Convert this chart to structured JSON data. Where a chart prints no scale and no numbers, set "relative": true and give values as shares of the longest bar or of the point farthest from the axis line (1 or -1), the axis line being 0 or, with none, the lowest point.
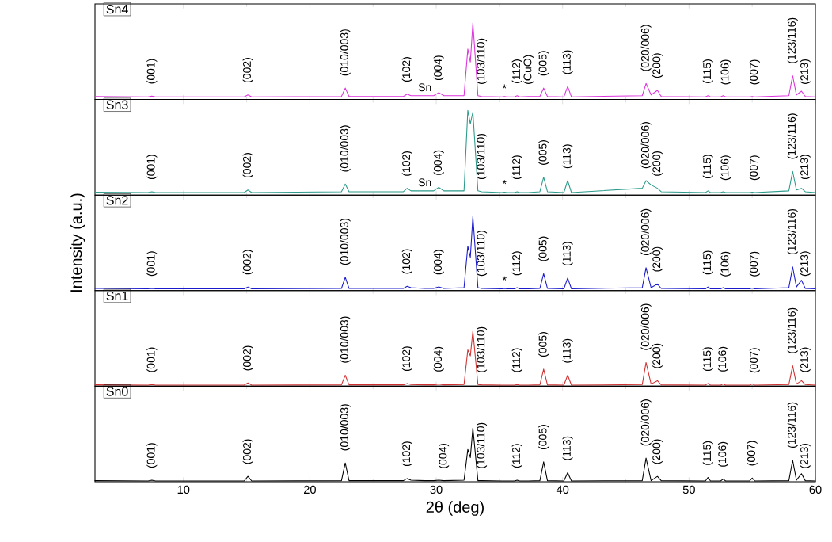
{
  "chart_data": [
    {
      "type": "line",
      "relative": true,
      "title": "Sn4",
      "color": "#dd33dd",
      "xlim": [
        3,
        60
      ],
      "xticks": [
        10,
        20,
        30,
        40,
        50,
        60
      ],
      "tick_labels": false,
      "x": [
        3,
        7.2,
        7.5,
        7.8,
        14.8,
        15.1,
        15.4,
        22.5,
        22.8,
        23.1,
        27.4,
        27.7,
        28.0,
        29.1,
        29.8,
        30.2,
        30.6,
        32.2,
        32.5,
        32.7,
        32.9,
        33.3,
        33.6,
        35.2,
        35.4,
        35.6,
        36.2,
        36.4,
        36.6,
        37.3,
        38.2,
        38.5,
        38.8,
        40.1,
        40.4,
        40.7,
        46.3,
        46.6,
        47.0,
        47.5,
        47.8,
        51.3,
        51.5,
        51.7,
        52.5,
        52.7,
        52.9,
        54.8,
        55.0,
        55.2,
        57.9,
        58.2,
        58.5,
        58.9,
        59.2,
        60
      ],
      "values": [
        0.04,
        0.035,
        0.045,
        0.035,
        0.035,
        0.06,
        0.035,
        0.04,
        0.15,
        0.04,
        0.04,
        0.07,
        0.05,
        0.05,
        0.05,
        0.09,
        0.05,
        0.05,
        0.66,
        0.49,
        1,
        0.05,
        0.04,
        0.035,
        0.04,
        0.035,
        0.035,
        0.05,
        0.035,
        0.04,
        0.04,
        0.15,
        0.04,
        0.035,
        0.17,
        0.035,
        0.05,
        0.21,
        0.06,
        0.12,
        0.04,
        0.035,
        0.05,
        0.035,
        0.035,
        0.05,
        0.035,
        0.035,
        0.04,
        0.035,
        0.05,
        0.31,
        0.06,
        0.11,
        0.04,
        0.035
      ],
      "annotations": [
        {
          "text": "(001)",
          "x": 7.5,
          "y": 0.045
        },
        {
          "text": "(002)",
          "x": 15.1,
          "y": 0.06
        },
        {
          "text": "(010/003)",
          "x": 22.8,
          "y": 0.15
        },
        {
          "text": "(102)",
          "x": 27.7,
          "y": 0.07
        },
        {
          "text": "Sn",
          "x": 29.1,
          "y": 0.05
        },
        {
          "text": "(004)",
          "x": 30.2,
          "y": 0.09
        },
        {
          "text": "(103/110)",
          "x": 33.6,
          "y": 0.04
        },
        {
          "text": "*",
          "x": 35.4,
          "y": 0.04
        },
        {
          "text": "(112)",
          "x": 36.4,
          "y": 0.05
        },
        {
          "text": "(CuO)",
          "x": 37.3,
          "y": 0.04
        },
        {
          "text": "(005)",
          "x": 38.5,
          "y": 0.15
        },
        {
          "text": "(113)",
          "x": 40.4,
          "y": 0.17
        },
        {
          "text": "(020/006)",
          "x": 46.6,
          "y": 0.21
        },
        {
          "text": "(200)",
          "x": 47.5,
          "y": 0.12
        },
        {
          "text": "(115)",
          "x": 51.5,
          "y": 0.05
        },
        {
          "text": "(106)",
          "x": 52.9,
          "y": 0.035
        },
        {
          "text": "(007)",
          "x": 55.2,
          "y": 0.035
        },
        {
          "text": "(123/116)",
          "x": 58.2,
          "y": 0.31
        },
        {
          "text": "(213)",
          "x": 59.2,
          "y": 0.04
        }
      ]
    },
    {
      "type": "line",
      "relative": true,
      "title": "Sn3",
      "color": "#2a9a8a",
      "xlim": [
        3,
        60
      ],
      "xticks": [
        10,
        20,
        30,
        40,
        50,
        60
      ],
      "tick_labels": false,
      "x": [
        3,
        7.2,
        7.5,
        7.8,
        14.8,
        15.1,
        15.4,
        22.5,
        22.8,
        23.1,
        27.4,
        27.7,
        28.0,
        29.1,
        29.8,
        30.2,
        30.6,
        32.2,
        32.5,
        32.7,
        32.9,
        33.3,
        33.6,
        35.2,
        35.4,
        35.6,
        36.2,
        36.4,
        36.6,
        37.3,
        38.2,
        38.5,
        38.8,
        40.1,
        40.4,
        40.7,
        46.3,
        46.6,
        47.0,
        47.5,
        47.8,
        51.3,
        51.5,
        51.7,
        52.5,
        52.7,
        52.9,
        54.8,
        55.0,
        55.2,
        57.9,
        58.2,
        58.5,
        58.9,
        59.2,
        60
      ],
      "values": [
        0.035,
        0.03,
        0.04,
        0.03,
        0.03,
        0.06,
        0.03,
        0.04,
        0.13,
        0.04,
        0.04,
        0.08,
        0.05,
        0.05,
        0.05,
        0.09,
        0.05,
        0.05,
        1,
        0.84,
        0.98,
        0.05,
        0.04,
        0.03,
        0.035,
        0.03,
        0.03,
        0.04,
        0.03,
        0.03,
        0.04,
        0.21,
        0.04,
        0.03,
        0.17,
        0.03,
        0.08,
        0.17,
        0.12,
        0.08,
        0.04,
        0.03,
        0.05,
        0.03,
        0.03,
        0.04,
        0.03,
        0.03,
        0.035,
        0.03,
        0.05,
        0.28,
        0.06,
        0.08,
        0.04,
        0.03
      ],
      "annotations": [
        {
          "text": "(001)",
          "x": 7.5,
          "y": 0.04
        },
        {
          "text": "(002)",
          "x": 15.1,
          "y": 0.06
        },
        {
          "text": "(010/003)",
          "x": 22.8,
          "y": 0.13
        },
        {
          "text": "(102)",
          "x": 27.7,
          "y": 0.08
        },
        {
          "text": "Sn",
          "x": 29.1,
          "y": 0.05
        },
        {
          "text": "(004)",
          "x": 30.2,
          "y": 0.09
        },
        {
          "text": "(103/110)",
          "x": 33.6,
          "y": 0.04
        },
        {
          "text": "*",
          "x": 35.4,
          "y": 0.035
        },
        {
          "text": "(112)",
          "x": 36.4,
          "y": 0.04
        },
        {
          "text": "(005)",
          "x": 38.5,
          "y": 0.21
        },
        {
          "text": "(113)",
          "x": 40.4,
          "y": 0.17
        },
        {
          "text": "(020/006)",
          "x": 46.6,
          "y": 0.17
        },
        {
          "text": "(200)",
          "x": 47.5,
          "y": 0.08
        },
        {
          "text": "(115)",
          "x": 51.5,
          "y": 0.05
        },
        {
          "text": "(106)",
          "x": 52.9,
          "y": 0.03
        },
        {
          "text": "(007)",
          "x": 55.2,
          "y": 0.03
        },
        {
          "text": "(123/116)",
          "x": 58.2,
          "y": 0.28
        },
        {
          "text": "(213)",
          "x": 59.2,
          "y": 0.04
        }
      ]
    },
    {
      "type": "line",
      "relative": true,
      "title": "Sn2",
      "ylabel": "Intensity (a.u.)",
      "color": "#1a1acc",
      "xlim": [
        3,
        60
      ],
      "xticks": [
        10,
        20,
        30,
        40,
        50,
        60
      ],
      "tick_labels": false,
      "x": [
        3,
        7.2,
        7.5,
        7.8,
        14.8,
        15.1,
        15.4,
        22.5,
        22.8,
        23.1,
        27.4,
        27.7,
        28.0,
        29.1,
        29.8,
        30.2,
        30.6,
        32.2,
        32.5,
        32.7,
        32.9,
        33.3,
        33.6,
        35.2,
        35.4,
        35.6,
        36.2,
        36.4,
        36.6,
        37.3,
        38.2,
        38.5,
        38.8,
        40.1,
        40.4,
        40.7,
        46.3,
        46.6,
        47.0,
        47.5,
        47.8,
        51.3,
        51.5,
        51.7,
        52.5,
        52.7,
        52.9,
        54.8,
        55.0,
        55.2,
        57.9,
        58.2,
        58.5,
        58.9,
        59.2,
        60
      ],
      "values": [
        0.03,
        0.025,
        0.03,
        0.025,
        0.025,
        0.05,
        0.025,
        0.03,
        0.18,
        0.03,
        0.03,
        0.06,
        0.04,
        0.03,
        0.03,
        0.05,
        0.03,
        0.04,
        0.6,
        0.45,
        1,
        0.04,
        0.03,
        0.025,
        0.03,
        0.025,
        0.025,
        0.04,
        0.025,
        0.025,
        0.03,
        0.23,
        0.03,
        0.025,
        0.17,
        0.025,
        0.04,
        0.31,
        0.04,
        0.09,
        0.03,
        0.025,
        0.05,
        0.025,
        0.025,
        0.04,
        0.025,
        0.025,
        0.035,
        0.025,
        0.04,
        0.32,
        0.05,
        0.14,
        0.03,
        0.025
      ],
      "annotations": [
        {
          "text": "(001)",
          "x": 7.5,
          "y": 0.03
        },
        {
          "text": "(002)",
          "x": 15.1,
          "y": 0.05
        },
        {
          "text": "(010/003)",
          "x": 22.8,
          "y": 0.18
        },
        {
          "text": "(102)",
          "x": 27.7,
          "y": 0.06
        },
        {
          "text": "(004)",
          "x": 30.2,
          "y": 0.05
        },
        {
          "text": "(103/110)",
          "x": 33.6,
          "y": 0.03
        },
        {
          "text": "*",
          "x": 35.4,
          "y": 0.03
        },
        {
          "text": "(112)",
          "x": 36.4,
          "y": 0.04
        },
        {
          "text": "(005)",
          "x": 38.5,
          "y": 0.23
        },
        {
          "text": "(113)",
          "x": 40.4,
          "y": 0.17
        },
        {
          "text": "(020/006)",
          "x": 46.6,
          "y": 0.31
        },
        {
          "text": "(200)",
          "x": 47.5,
          "y": 0.09
        },
        {
          "text": "(115)",
          "x": 51.5,
          "y": 0.05
        },
        {
          "text": "(106)",
          "x": 52.9,
          "y": 0.025
        },
        {
          "text": "(007)",
          "x": 55.2,
          "y": 0.025
        },
        {
          "text": "(123/116)",
          "x": 58.2,
          "y": 0.32
        },
        {
          "text": "(213)",
          "x": 59.2,
          "y": 0.03
        }
      ]
    },
    {
      "type": "line",
      "relative": true,
      "title": "Sn1",
      "color": "#d03030",
      "xlim": [
        3,
        60
      ],
      "xticks": [
        10,
        20,
        30,
        40,
        50,
        60
      ],
      "tick_labels": false,
      "x": [
        3,
        7.2,
        7.5,
        7.8,
        14.8,
        15.1,
        15.4,
        22.5,
        22.8,
        23.1,
        27.4,
        27.7,
        28.0,
        29.1,
        29.8,
        30.2,
        30.6,
        32.2,
        32.5,
        32.7,
        32.9,
        33.3,
        33.6,
        35.2,
        35.4,
        35.6,
        36.2,
        36.4,
        36.6,
        37.3,
        38.2,
        38.5,
        38.8,
        40.1,
        40.4,
        40.7,
        46.3,
        46.6,
        47.0,
        47.5,
        47.8,
        51.3,
        51.5,
        51.7,
        52.5,
        52.7,
        52.9,
        54.8,
        55.0,
        55.2,
        57.9,
        58.2,
        58.5,
        58.9,
        59.2,
        60
      ],
      "values": [
        0.025,
        0.02,
        0.03,
        0.02,
        0.02,
        0.06,
        0.02,
        0.025,
        0.2,
        0.025,
        0.025,
        0.05,
        0.03,
        0.025,
        0.025,
        0.04,
        0.025,
        0.03,
        0.66,
        0.55,
        1,
        0.03,
        0.025,
        0.02,
        0.02,
        0.02,
        0.02,
        0.03,
        0.02,
        0.02,
        0.025,
        0.31,
        0.025,
        0.02,
        0.2,
        0.02,
        0.03,
        0.43,
        0.04,
        0.1,
        0.025,
        0.02,
        0.05,
        0.02,
        0.02,
        0.04,
        0.02,
        0.02,
        0.04,
        0.02,
        0.03,
        0.37,
        0.04,
        0.1,
        0.03,
        0.02
      ],
      "annotations": [
        {
          "text": "(001)",
          "x": 7.5,
          "y": 0.03
        },
        {
          "text": "(002)",
          "x": 15.1,
          "y": 0.06
        },
        {
          "text": "(010/003)",
          "x": 22.8,
          "y": 0.2
        },
        {
          "text": "(102)",
          "x": 27.7,
          "y": 0.05
        },
        {
          "text": "(004)",
          "x": 30.2,
          "y": 0.04
        },
        {
          "text": "(103/110)",
          "x": 33.6,
          "y": 0.025
        },
        {
          "text": "(112)",
          "x": 36.4,
          "y": 0.03
        },
        {
          "text": "(005)",
          "x": 38.5,
          "y": 0.31
        },
        {
          "text": "(113)",
          "x": 40.4,
          "y": 0.2
        },
        {
          "text": "(020/006)",
          "x": 46.6,
          "y": 0.43
        },
        {
          "text": "(200)",
          "x": 47.5,
          "y": 0.1
        },
        {
          "text": "(115)",
          "x": 51.5,
          "y": 0.05
        },
        {
          "text": "(106)",
          "x": 52.7,
          "y": 0.04
        },
        {
          "text": "(007)",
          "x": 55.2,
          "y": 0.02
        },
        {
          "text": "(123/116)",
          "x": 58.2,
          "y": 0.37
        },
        {
          "text": "(213)",
          "x": 59.2,
          "y": 0.03
        }
      ]
    },
    {
      "type": "line",
      "relative": true,
      "title": "Sn0",
      "xlabel": "2θ (deg)",
      "color": "#000000",
      "xlim": [
        3,
        60
      ],
      "xticks": [
        10,
        20,
        30,
        40,
        50,
        60
      ],
      "tick_labels": "x",
      "x": [
        3,
        7.2,
        7.5,
        7.8,
        14.8,
        15.1,
        15.4,
        22.5,
        22.8,
        23.1,
        27.4,
        27.7,
        28.0,
        29.1,
        29.8,
        30.2,
        30.6,
        32.2,
        32.5,
        32.7,
        32.9,
        33.3,
        33.6,
        35.2,
        35.4,
        35.6,
        36.2,
        36.4,
        36.6,
        37.3,
        38.2,
        38.5,
        38.8,
        40.1,
        40.4,
        40.7,
        46.3,
        46.6,
        47.0,
        47.5,
        47.8,
        51.3,
        51.5,
        51.7,
        52.5,
        52.7,
        52.9,
        54.8,
        55.0,
        55.2,
        57.9,
        58.2,
        58.5,
        58.9,
        59.2,
        60
      ],
      "values": [
        0.02,
        0.015,
        0.03,
        0.015,
        0.015,
        0.1,
        0.015,
        0.02,
        0.35,
        0.02,
        0.02,
        0.06,
        0.03,
        0.02,
        0.02,
        0.03,
        0.02,
        0.03,
        0.6,
        0.45,
        1,
        0.02,
        0.02,
        0.015,
        0.015,
        0.015,
        0.015,
        0.03,
        0.015,
        0.015,
        0.02,
        0.37,
        0.02,
        0.015,
        0.17,
        0.015,
        0.02,
        0.44,
        0.02,
        0.1,
        0.02,
        0.015,
        0.08,
        0.015,
        0.015,
        0.05,
        0.015,
        0.015,
        0.07,
        0.015,
        0.02,
        0.4,
        0.03,
        0.15,
        0.02,
        0.015
      ],
      "annotations": [
        {
          "text": "(001)",
          "x": 7.5,
          "y": 0.03
        },
        {
          "text": "(002)",
          "x": 15.1,
          "y": 0.1
        },
        {
          "text": "(010/003)",
          "x": 22.8,
          "y": 0.35
        },
        {
          "text": "(102)",
          "x": 27.7,
          "y": 0.06
        },
        {
          "text": "(004)",
          "x": 30.6,
          "y": 0.02
        },
        {
          "text": "(103/110)",
          "x": 33.6,
          "y": 0.02
        },
        {
          "text": "(112)",
          "x": 36.4,
          "y": 0.03
        },
        {
          "text": "(005)",
          "x": 38.5,
          "y": 0.37
        },
        {
          "text": "(113)",
          "x": 40.4,
          "y": 0.17
        },
        {
          "text": "(020/006)",
          "x": 46.6,
          "y": 0.44
        },
        {
          "text": "(200)",
          "x": 47.5,
          "y": 0.1
        },
        {
          "text": "(115)",
          "x": 51.5,
          "y": 0.08
        },
        {
          "text": "(106)",
          "x": 52.7,
          "y": 0.05
        },
        {
          "text": "(007)",
          "x": 55.0,
          "y": 0.07
        },
        {
          "text": "(123/116)",
          "x": 58.2,
          "y": 0.4
        },
        {
          "text": "(213)",
          "x": 59.2,
          "y": 0.02
        }
      ]
    }
  ]
}
